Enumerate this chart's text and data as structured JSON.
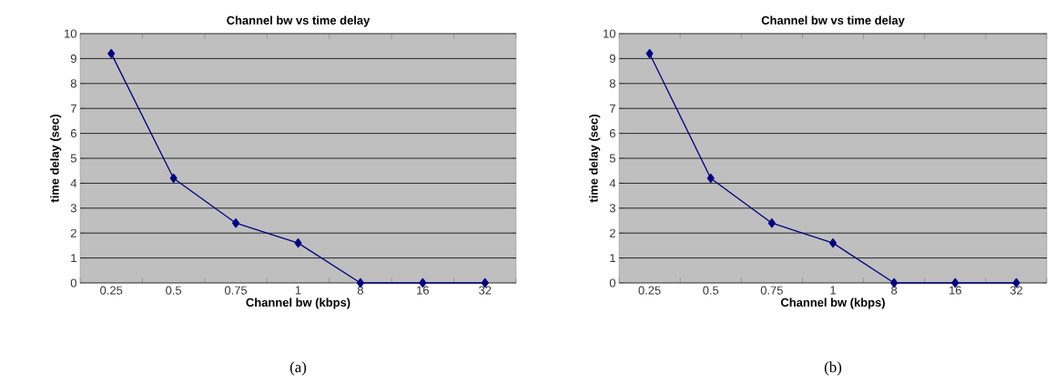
{
  "chart_data": [
    {
      "type": "line",
      "title": "Channel bw vs time delay",
      "xlabel": "Channel bw (kbps)",
      "ylabel": "time delay (sec)",
      "categories": [
        "0.25",
        "0.5",
        "0.75",
        "1",
        "8",
        "16",
        "32"
      ],
      "series": [
        {
          "color": "#000080",
          "values": [
            9.2,
            4.2,
            2.4,
            1.6,
            0,
            0,
            0
          ]
        }
      ],
      "ylim": [
        0,
        10
      ],
      "yticks": [
        0,
        1,
        2,
        3,
        4,
        5,
        6,
        7,
        8,
        9,
        10
      ],
      "grid": "y",
      "marker": "diamond",
      "line_style": "solid",
      "annotations": [
        "(a)"
      ]
    },
    {
      "type": "line",
      "title": "Channel bw vs time delay",
      "xlabel": "Channel bw (kbps)",
      "ylabel": "time delay (sec)",
      "categories": [
        "0.25",
        "0.5",
        "0.75",
        "1",
        "8",
        "16",
        "32"
      ],
      "series": [
        {
          "color": "#000080",
          "values": [
            9.2,
            4.2,
            2.4,
            1.6,
            0,
            0,
            0
          ]
        }
      ],
      "ylim": [
        0,
        10
      ],
      "yticks": [
        0,
        1,
        2,
        3,
        4,
        5,
        6,
        7,
        8,
        9,
        10
      ],
      "grid": "y",
      "marker": "diamond",
      "line_style": "solid",
      "annotations": [
        "(b)"
      ]
    }
  ]
}
